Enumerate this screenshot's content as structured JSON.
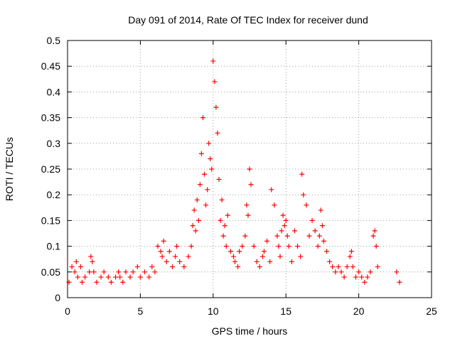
{
  "chart_data": {
    "type": "scatter",
    "title": "Day 091 of 2014, Rate Of TEC Index for receiver dund",
    "xlabel": "GPS time / hours",
    "ylabel": "ROTI / TECUs",
    "xlim": [
      0,
      25
    ],
    "ylim": [
      0,
      0.5
    ],
    "xticks": [
      "0",
      "5",
      "10",
      "15",
      "20",
      "25"
    ],
    "yticks": [
      "0",
      "0.05",
      "0.1",
      "0.15",
      "0.2",
      "0.25",
      "0.3",
      "0.35",
      "0.4",
      "0.45",
      "0.5"
    ],
    "grid": true,
    "marker": "+",
    "color": "#ff0000",
    "series": [
      {
        "x": [
          0.1,
          0.3,
          0.5,
          0.6,
          0.7,
          0.9,
          1.0,
          1.2,
          1.5,
          1.6,
          1.7,
          1.8,
          2.0,
          2.3,
          2.5,
          2.8,
          3.0,
          3.3,
          3.5,
          3.6,
          3.8,
          4.0,
          4.3,
          4.5,
          4.8,
          5.0,
          5.3,
          5.6,
          5.8,
          6.0,
          6.2,
          6.4,
          6.5,
          6.6,
          6.8,
          7.0,
          7.2,
          7.4,
          7.5,
          7.7,
          8.0,
          8.3,
          8.5,
          8.6,
          8.7,
          8.8,
          8.9,
          9.0,
          9.1,
          9.2,
          9.3,
          9.4,
          9.5,
          9.6,
          9.7,
          9.8,
          9.9,
          10.0,
          10.1,
          10.2,
          10.3,
          10.4,
          10.5,
          10.6,
          10.7,
          10.8,
          10.9,
          11.0,
          11.2,
          11.4,
          11.5,
          11.7,
          11.8,
          12.0,
          12.2,
          12.3,
          12.4,
          12.5,
          12.6,
          12.8,
          13.0,
          13.2,
          13.4,
          13.5,
          13.7,
          13.9,
          14.0,
          14.2,
          14.4,
          14.5,
          14.6,
          14.7,
          14.8,
          14.9,
          15.0,
          15.1,
          15.2,
          15.4,
          15.6,
          15.8,
          16.0,
          16.1,
          16.2,
          16.4,
          16.6,
          16.8,
          17.0,
          17.2,
          17.3,
          17.4,
          17.5,
          17.6,
          17.8,
          18.0,
          18.2,
          18.4,
          18.6,
          18.8,
          19.0,
          19.2,
          19.4,
          19.5,
          19.6,
          19.8,
          20.0,
          20.2,
          20.4,
          20.6,
          20.8,
          21.0,
          21.1,
          21.2,
          21.3,
          22.6,
          22.8
        ],
        "y": [
          0.03,
          0.06,
          0.05,
          0.07,
          0.04,
          0.06,
          0.03,
          0.04,
          0.05,
          0.08,
          0.07,
          0.05,
          0.03,
          0.04,
          0.05,
          0.04,
          0.03,
          0.04,
          0.05,
          0.04,
          0.03,
          0.05,
          0.04,
          0.05,
          0.06,
          0.04,
          0.05,
          0.04,
          0.06,
          0.05,
          0.1,
          0.09,
          0.08,
          0.11,
          0.07,
          0.09,
          0.06,
          0.08,
          0.1,
          0.07,
          0.06,
          0.08,
          0.1,
          0.14,
          0.17,
          0.13,
          0.19,
          0.15,
          0.22,
          0.28,
          0.35,
          0.24,
          0.18,
          0.21,
          0.3,
          0.27,
          0.25,
          0.46,
          0.42,
          0.37,
          0.32,
          0.23,
          0.15,
          0.19,
          0.12,
          0.14,
          0.1,
          0.16,
          0.09,
          0.08,
          0.07,
          0.06,
          0.09,
          0.1,
          0.12,
          0.18,
          0.16,
          0.25,
          0.22,
          0.1,
          0.07,
          0.06,
          0.08,
          0.09,
          0.11,
          0.07,
          0.21,
          0.18,
          0.12,
          0.1,
          0.08,
          0.13,
          0.16,
          0.14,
          0.15,
          0.12,
          0.1,
          0.07,
          0.13,
          0.1,
          0.08,
          0.24,
          0.2,
          0.18,
          0.12,
          0.15,
          0.13,
          0.1,
          0.12,
          0.17,
          0.14,
          0.11,
          0.09,
          0.07,
          0.06,
          0.05,
          0.06,
          0.05,
          0.04,
          0.06,
          0.08,
          0.09,
          0.06,
          0.04,
          0.05,
          0.04,
          0.03,
          0.04,
          0.05,
          0.12,
          0.13,
          0.1,
          0.06,
          0.05,
          0.03
        ]
      }
    ]
  }
}
